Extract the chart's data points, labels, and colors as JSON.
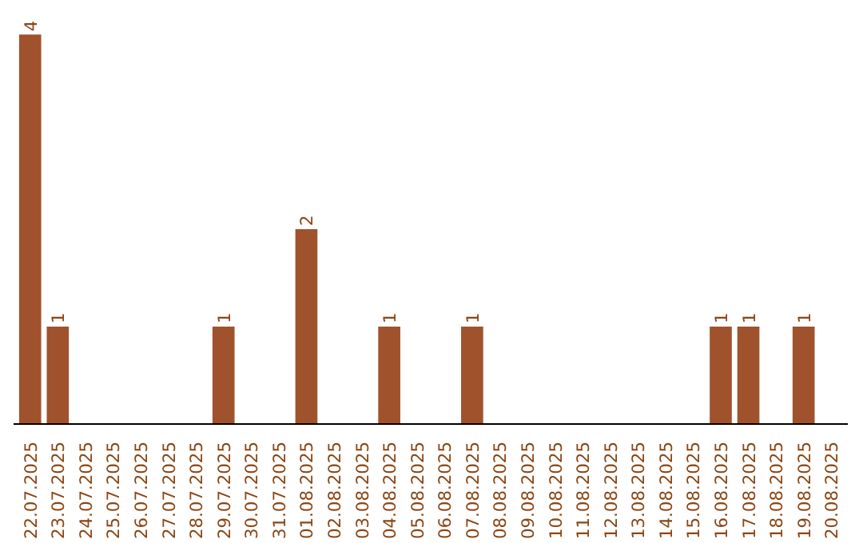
{
  "chart_data": {
    "type": "bar",
    "categories": [
      "22.07.2025",
      "23.07.2025",
      "24.07.2025",
      "25.07.2025",
      "26.07.2025",
      "27.07.2025",
      "28.07.2025",
      "29.07.2025",
      "30.07.2025",
      "31.07.2025",
      "01.08.2025",
      "02.08.2025",
      "03.08.2025",
      "04.08.2025",
      "05.08.2025",
      "06.08.2025",
      "07.08.2025",
      "08.08.2025",
      "09.08.2025",
      "10.08.2025",
      "11.08.2025",
      "12.08.2025",
      "13.08.2025",
      "14.08.2025",
      "15.08.2025",
      "16.08.2025",
      "17.08.2025",
      "18.08.2025",
      "19.08.2025",
      "20.08.2025"
    ],
    "values": [
      4,
      1,
      0,
      0,
      0,
      0,
      0,
      1,
      0,
      0,
      2,
      0,
      0,
      1,
      0,
      0,
      1,
      0,
      0,
      0,
      0,
      0,
      0,
      0,
      0,
      1,
      1,
      0,
      1,
      0
    ],
    "value_labels": [
      "4",
      "1",
      null,
      null,
      null,
      null,
      null,
      "1",
      null,
      null,
      "2",
      null,
      null,
      "1",
      null,
      null,
      "1",
      null,
      null,
      null,
      null,
      null,
      null,
      null,
      null,
      "1",
      "1",
      null,
      "1",
      null
    ],
    "color": "#a0522d",
    "grid": false
  }
}
